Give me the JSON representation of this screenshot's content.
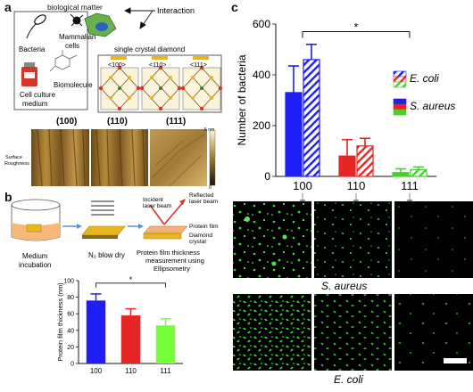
{
  "panel_letters": {
    "a": "a",
    "b": "b",
    "c": "c"
  },
  "panel_a": {
    "labels": {
      "biological_matter": "biological matter",
      "interaction": "Interaction",
      "bacteria": "Bacteria",
      "mammalian": "Mammalian",
      "cells": "cells",
      "biomolecule": "Biomolecule",
      "cell_culture_1": "Cell culture",
      "cell_culture_2": "medium",
      "diamond": "single crystal diamond",
      "facet_100": "<100>",
      "facet_110": "<110>",
      "facet_111": "<111>",
      "afm_100": "(100)",
      "afm_110": "(110)",
      "afm_111": "(111)",
      "surface_1": "Surface",
      "surface_2": "Roughness",
      "scale_top": "5 nm",
      "scale_bottom": "0"
    },
    "colors": {
      "bacteria": "#5aa0d8",
      "mammalian": "#6ab04c",
      "medium": "#d9342b"
    }
  },
  "panel_b": {
    "labels": {
      "medium_1": "Medium",
      "medium_2": "incubation",
      "n2": "N₂ blow dry",
      "incident_1": "Incident",
      "incident_2": "laser beam",
      "reflected_1": "Reflected",
      "reflected_2": "laser beam",
      "protein_film": "Protein film",
      "diamond_1": "Diamond",
      "diamond_2": "crystal",
      "measure_1": "Protein film thickness",
      "measure_2": "measurement using",
      "measure_3": "Ellipsometry"
    }
  },
  "panel_c_images": {
    "labels": {
      "s_aureus": "S. aureus",
      "e_coli": "E. coli"
    }
  },
  "chart_data": [
    {
      "id": "protein_film",
      "type": "bar",
      "categories": [
        "100",
        "110",
        "111"
      ],
      "values": [
        76,
        58,
        46
      ],
      "errors": [
        8,
        8,
        8
      ],
      "colors": [
        "#1f1ff5",
        "#e62525",
        "#77ff3a"
      ],
      "ylabel": "Protein film thickness (nm)",
      "xlabel": "",
      "title": "",
      "ylim": [
        0,
        100
      ],
      "yticks": [
        0,
        20,
        40,
        60,
        80,
        100
      ],
      "significance": "*",
      "grid": false
    },
    {
      "id": "bacteria_count",
      "type": "bar",
      "categories": [
        "100",
        "110",
        "111"
      ],
      "series": [
        {
          "name": "S. aureus",
          "values": [
            330,
            80,
            15
          ],
          "errors": [
            105,
            65,
            15
          ],
          "pattern": "solid"
        },
        {
          "name": "E. coli",
          "values": [
            460,
            120,
            27
          ],
          "errors": [
            60,
            30,
            10
          ],
          "pattern": "hatched"
        }
      ],
      "colors": [
        "#1f1ff5",
        "#e62525",
        "#44d12a"
      ],
      "ylabel": "Number of bacteria",
      "xlabel": "",
      "title": "",
      "ylim": [
        0,
        600
      ],
      "yticks": [
        0,
        200,
        400,
        600
      ],
      "legend_position": "top-right",
      "significance": "*",
      "grid": false
    }
  ]
}
